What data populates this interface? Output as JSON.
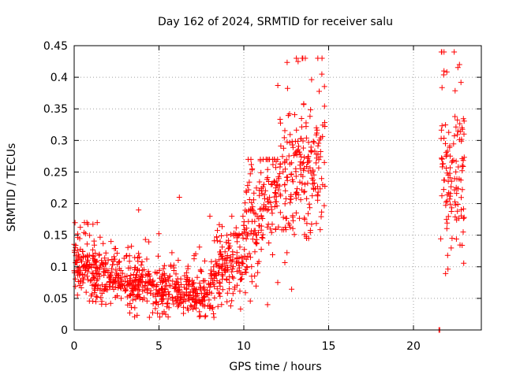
{
  "chart_data": {
    "type": "scatter",
    "title": "Day 162 of 2024, SRMTID for receiver salu",
    "xlabel": "GPS time / hours",
    "ylabel": "SRMTID / TECUs",
    "xlim": [
      0,
      24
    ],
    "ylim": [
      0,
      0.45
    ],
    "x_ticks": [
      0,
      5,
      10,
      15,
      20
    ],
    "x_tick_labels": [
      "0",
      "5",
      "10",
      "15",
      "20"
    ],
    "y_ticks": [
      0,
      0.05,
      0.1,
      0.15,
      0.2,
      0.25,
      0.3,
      0.35,
      0.4,
      0.45
    ],
    "y_tick_labels": [
      "0",
      "0.05",
      "0.1",
      "0.15",
      "0.2",
      "0.25",
      "0.3",
      "0.35",
      "0.4",
      "0.45"
    ],
    "grid": true,
    "marker": "plus",
    "color": "#ff0000",
    "series": [
      {
        "name": "SRMTID",
        "segments": [
          {
            "x_start": 0.0,
            "x_end": 2.0,
            "center_start": 0.11,
            "center_end": 0.08,
            "spread": 0.025,
            "max_outlier": 0.17,
            "count": 180
          },
          {
            "x_start": 2.0,
            "x_end": 4.5,
            "center_start": 0.08,
            "center_end": 0.075,
            "spread": 0.022,
            "max_outlier": 0.19,
            "count": 200
          },
          {
            "x_start": 4.5,
            "x_end": 8.0,
            "center_start": 0.065,
            "center_end": 0.06,
            "spread": 0.02,
            "max_outlier": 0.21,
            "count": 260
          },
          {
            "x_start": 8.0,
            "x_end": 10.0,
            "center_start": 0.08,
            "center_end": 0.12,
            "spread": 0.03,
            "max_outlier": 0.18,
            "count": 160
          },
          {
            "x_start": 10.0,
            "x_end": 12.0,
            "center_start": 0.15,
            "center_end": 0.22,
            "spread": 0.045,
            "max_outlier": 0.27,
            "count": 160
          },
          {
            "x_start": 12.0,
            "x_end": 14.8,
            "center_start": 0.22,
            "center_end": 0.25,
            "spread": 0.06,
            "max_outlier": 0.43,
            "count": 220
          },
          {
            "x_start": 21.6,
            "x_end": 23.0,
            "center_start": 0.26,
            "center_end": 0.24,
            "spread": 0.075,
            "max_outlier": 0.44,
            "count": 120
          }
        ],
        "notable_points": [
          {
            "x": 13.1,
            "y": 0.43
          },
          {
            "x": 13.2,
            "y": 0.425
          },
          {
            "x": 14.6,
            "y": 0.405
          },
          {
            "x": 22.4,
            "y": 0.44
          },
          {
            "x": 21.8,
            "y": 0.41
          },
          {
            "x": 6.2,
            "y": 0.21
          },
          {
            "x": 3.8,
            "y": 0.19
          },
          {
            "x": 11.4,
            "y": 0.04
          },
          {
            "x": 12.0,
            "y": 0.075
          },
          {
            "x": 21.5,
            "y": 0.0
          },
          {
            "x": 21.55,
            "y": 0.0
          }
        ]
      }
    ]
  }
}
